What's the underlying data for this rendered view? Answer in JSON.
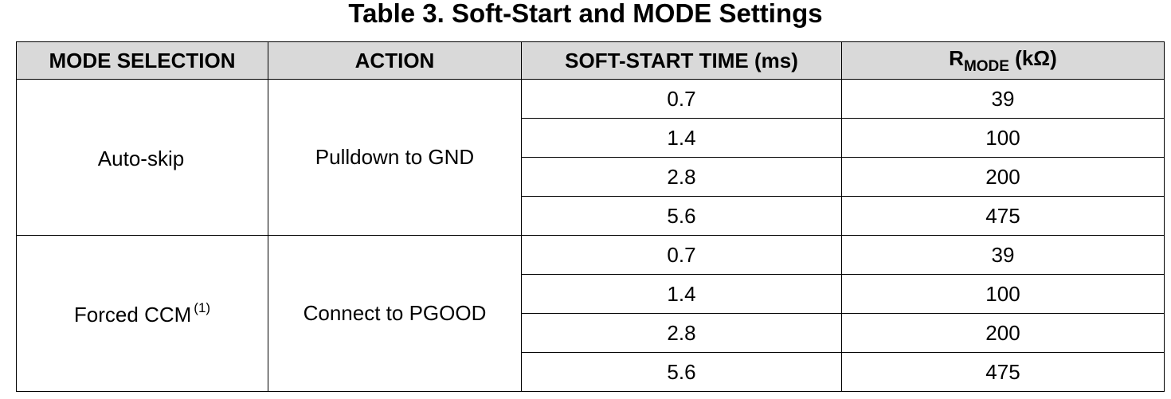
{
  "title": "Table 3. Soft-Start and MODE Settings",
  "table": {
    "headers": {
      "mode_selection": "MODE SELECTION",
      "action": "ACTION",
      "soft_start_time": "SOFT-START TIME (ms)",
      "rmode_prefix": "R",
      "rmode_subscript": "MODE",
      "rmode_unit": " (kΩ)"
    },
    "groups": [
      {
        "mode": "Auto-skip",
        "footnote": "",
        "action": "Pulldown to GND",
        "rows": [
          {
            "soft_start": "0.7",
            "rmode": "39"
          },
          {
            "soft_start": "1.4",
            "rmode": "100"
          },
          {
            "soft_start": "2.8",
            "rmode": "200"
          },
          {
            "soft_start": "5.6",
            "rmode": "475"
          }
        ]
      },
      {
        "mode": "Forced CCM",
        "footnote": "(1)",
        "action": "Connect to PGOOD",
        "rows": [
          {
            "soft_start": "0.7",
            "rmode": "39"
          },
          {
            "soft_start": "1.4",
            "rmode": "100"
          },
          {
            "soft_start": "2.8",
            "rmode": "200"
          },
          {
            "soft_start": "5.6",
            "rmode": "475"
          }
        ]
      }
    ]
  }
}
